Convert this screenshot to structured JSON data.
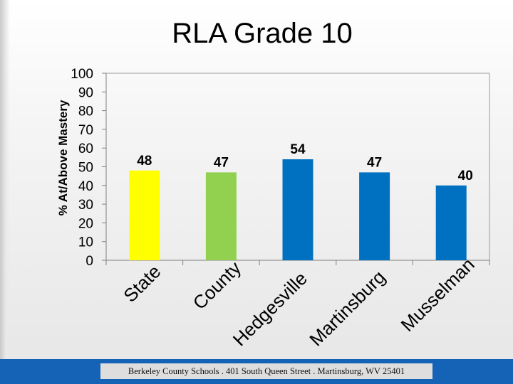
{
  "chart_data": {
    "type": "bar",
    "title": "RLA Grade 10",
    "xlabel": "",
    "ylabel": "% At/Above Mastery",
    "ylim": [
      0,
      100
    ],
    "yticks": [
      0,
      10,
      20,
      30,
      40,
      50,
      60,
      70,
      80,
      90,
      100
    ],
    "categories": [
      "State",
      "County",
      "Hedgesville",
      "Martinsburg",
      "Musselman"
    ],
    "values": [
      48,
      47,
      54,
      47,
      40
    ],
    "data_labels": [
      "48",
      "47",
      "54",
      "47",
      "40"
    ],
    "bar_colors": [
      "#ffff00",
      "#92d050",
      "#0070c0",
      "#0070c0",
      "#0070c0"
    ],
    "grid": false,
    "legend": "none"
  },
  "footer": {
    "text": "Berkeley County Schools . 401 South Queen Street . Martinsburg, WV  25401",
    "bar_color": "#1563b6"
  }
}
